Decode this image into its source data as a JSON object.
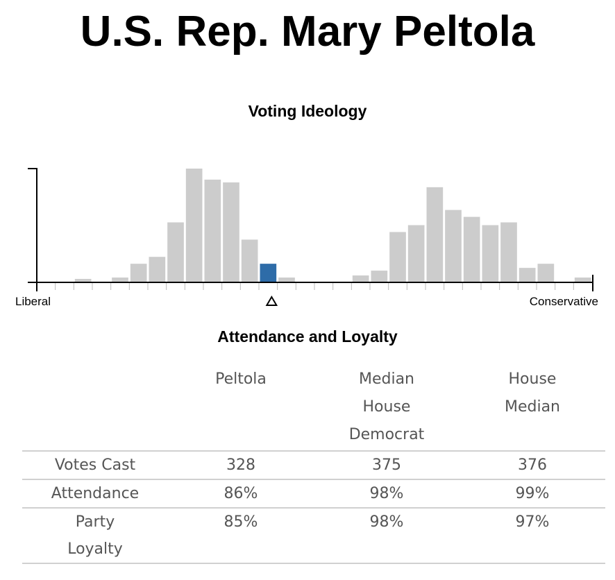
{
  "title": "U.S. Rep. Mary Peltola",
  "chart_data": {
    "type": "bar",
    "title": "Voting Ideology",
    "xlabel_left": "Liberal",
    "xlabel_right": "Conservative",
    "ylabel": "",
    "bins": 30,
    "values": [
      0,
      0,
      4,
      0,
      6,
      26,
      36,
      86,
      164,
      148,
      144,
      61,
      26,
      6,
      0,
      0,
      0,
      9,
      16,
      72,
      82,
      137,
      104,
      94,
      82,
      86,
      20,
      26,
      0,
      6
    ],
    "ylim": [
      0,
      164
    ],
    "highlight_bin": 12,
    "marker_bin": 12,
    "bar_color": "#cccccc",
    "highlight_color": "#2e6ca8"
  },
  "table": {
    "title": "Attendance and Loyalty",
    "headers": [
      "",
      "Peltola",
      "Median House Democrat",
      "House Median"
    ],
    "rows": [
      {
        "label": "Votes Cast",
        "values": [
          "328",
          "375",
          "376"
        ]
      },
      {
        "label": "Attendance",
        "values": [
          "86%",
          "98%",
          "99%"
        ]
      },
      {
        "label": "Party Loyalty",
        "values": [
          "85%",
          "98%",
          "97%"
        ]
      }
    ]
  }
}
